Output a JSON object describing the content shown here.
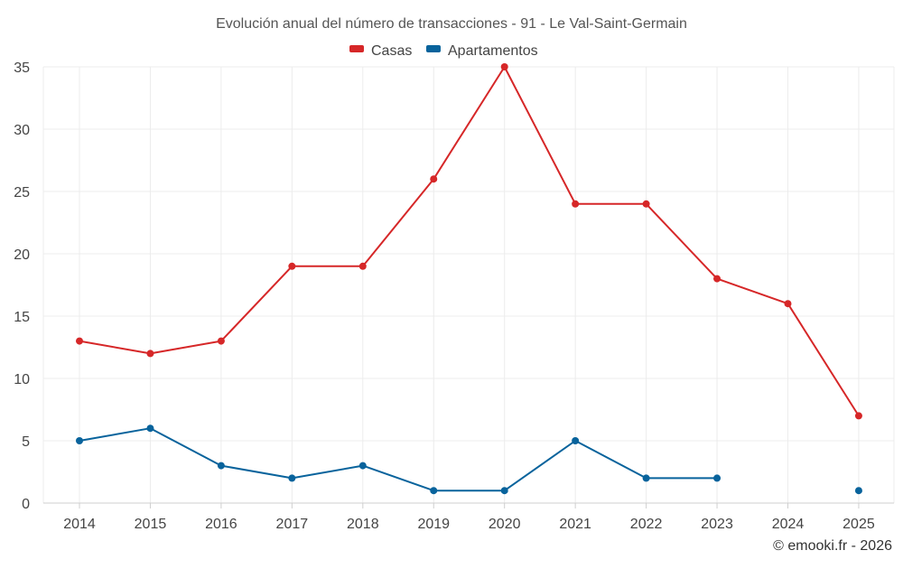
{
  "chart_data": {
    "type": "line",
    "title": "Evolución anual del número de transacciones - 91 - Le Val-Saint-Germain",
    "categories": [
      "2014",
      "2015",
      "2016",
      "2017",
      "2018",
      "2019",
      "2020",
      "2021",
      "2022",
      "2023",
      "2024",
      "2025"
    ],
    "series": [
      {
        "name": "Casas",
        "color": "#d62728",
        "values": [
          13,
          12,
          13,
          19,
          19,
          26,
          35,
          24,
          24,
          18,
          16,
          7
        ]
      },
      {
        "name": "Apartamentos",
        "color": "#08639c",
        "values": [
          5,
          6,
          3,
          2,
          3,
          1,
          1,
          5,
          2,
          2,
          null,
          1
        ]
      }
    ],
    "ylim": [
      0,
      35
    ],
    "yticks": [
      0,
      5,
      10,
      15,
      20,
      25,
      30,
      35
    ],
    "grid": true,
    "legend_position": "top-center",
    "xlabel": "",
    "ylabel": ""
  },
  "credit": "© emooki.fr - 2026"
}
